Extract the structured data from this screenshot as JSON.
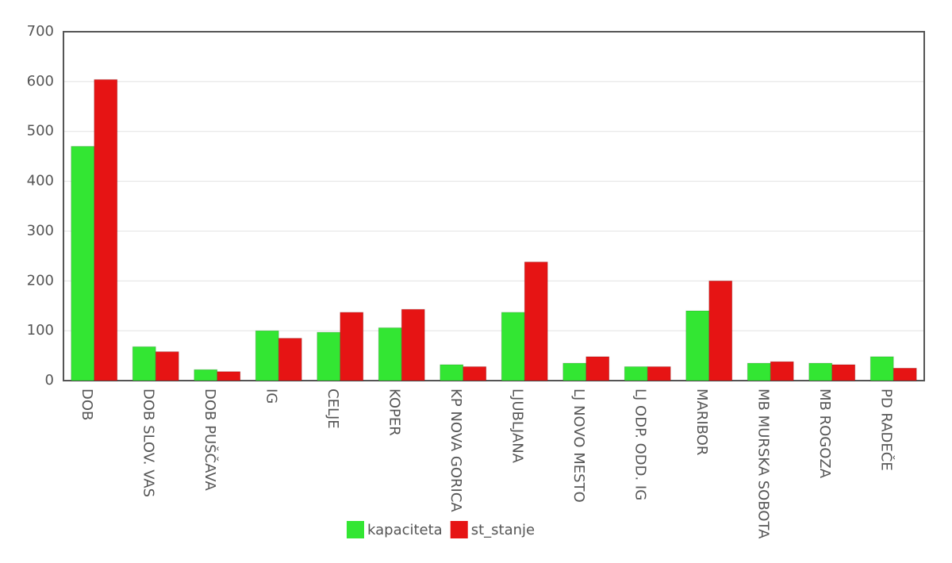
{
  "chart_data": {
    "type": "bar",
    "categories": [
      "DOB",
      "DOB SLOV. VAS",
      "DOB PUŠČAVA",
      "IG",
      "CELJE",
      "KOPER",
      "KP NOVA GORICA",
      "LJUBLJANA",
      "LJ NOVO MESTO",
      "LJ ODP. ODD. IG",
      "MARIBOR",
      "MB MURSKA SOBOTA",
      "MB ROGOZA",
      "PD RADEČE"
    ],
    "series": [
      {
        "name": "kapaciteta",
        "color": "#33e633",
        "values": [
          470,
          68,
          22,
          100,
          97,
          106,
          32,
          137,
          35,
          28,
          140,
          35,
          35,
          48
        ]
      },
      {
        "name": "st_stanje",
        "color": "#e61414",
        "values": [
          604,
          58,
          18,
          85,
          137,
          143,
          28,
          238,
          48,
          28,
          200,
          38,
          32,
          25
        ]
      }
    ],
    "ylim": [
      0,
      700
    ],
    "yticks": [
      0,
      100,
      200,
      300,
      400,
      500,
      600,
      700
    ],
    "grid": true
  }
}
